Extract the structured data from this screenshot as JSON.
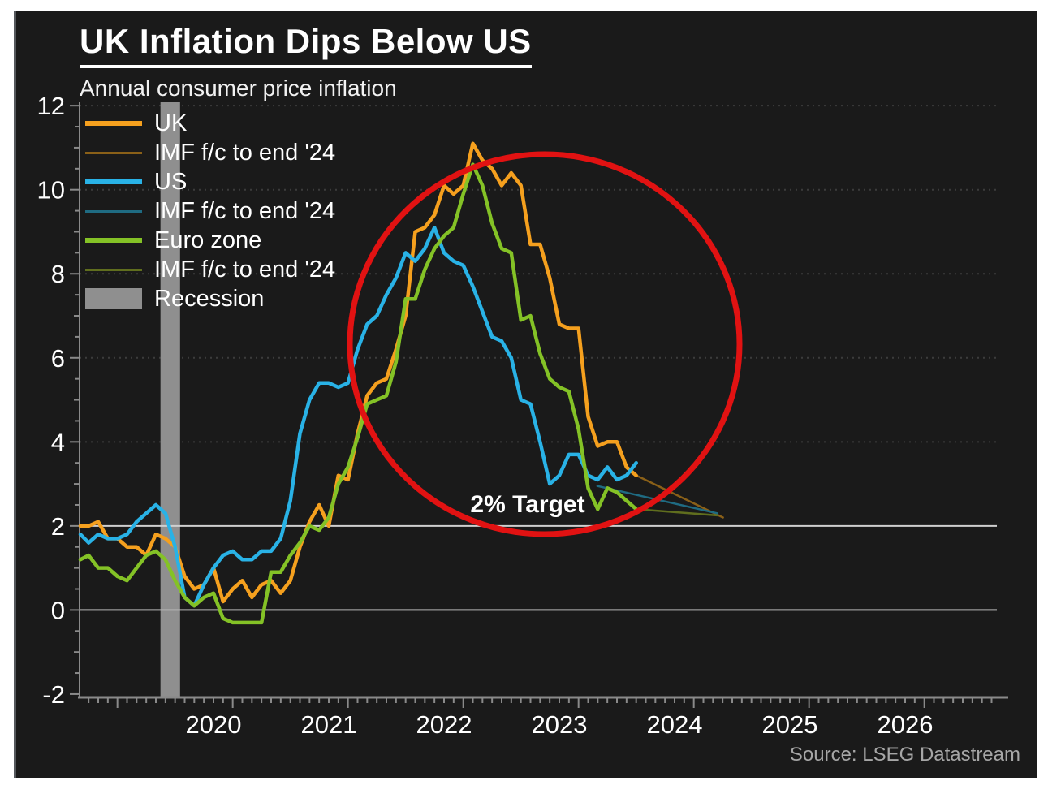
{
  "header": {
    "title": "UK Inflation Dips Below US",
    "subtitle": "Annual consumer price inflation"
  },
  "legend": {
    "items": [
      {
        "label": "UK",
        "color": "#f5a01e",
        "style": "line"
      },
      {
        "label": "IMF f/c to end '24",
        "color": "#8a6018",
        "style": "thinline"
      },
      {
        "label": "US",
        "color": "#29b2e6",
        "style": "line"
      },
      {
        "label": "IMF f/c to end '24",
        "color": "#1f6b82",
        "style": "thinline"
      },
      {
        "label": "Euro zone",
        "color": "#84c226",
        "style": "line"
      },
      {
        "label": "IMF f/c to end '24",
        "color": "#606e1e",
        "style": "thinline"
      },
      {
        "label": "Recession",
        "color": "#8f8f8f",
        "style": "box"
      }
    ]
  },
  "annotations": {
    "target_label": "2% Target"
  },
  "footer": {
    "source": "Source: LSEG Datastream"
  },
  "chart_data": {
    "type": "line",
    "title": "UK Inflation Dips Below US",
    "subtitle": "Annual consumer price inflation",
    "xlabel": "",
    "ylabel": "",
    "ylim": [
      -2,
      12
    ],
    "yticks": [
      -2,
      0,
      2,
      4,
      6,
      8,
      10,
      12
    ],
    "xticks": [
      2020,
      2021,
      2022,
      2023,
      2024,
      2025,
      2026
    ],
    "grid_dotted_at": [
      4,
      6,
      8,
      10,
      12
    ],
    "target_value": 2,
    "zero_value": 0,
    "frequency": "monthly",
    "start": {
      "year": 2019,
      "month": 5
    },
    "series": [
      {
        "name": "UK",
        "color": "#f5a01e",
        "values": [
          2.0,
          2.0,
          2.1,
          1.7,
          1.7,
          1.5,
          1.5,
          1.3,
          1.8,
          1.7,
          1.5,
          0.8,
          0.5,
          0.6,
          1.0,
          0.2,
          0.5,
          0.7,
          0.3,
          0.6,
          0.7,
          0.4,
          0.7,
          1.5,
          2.1,
          2.5,
          2.0,
          3.2,
          3.1,
          4.2,
          5.1,
          5.4,
          5.5,
          6.2,
          7.0,
          9.0,
          9.1,
          9.4,
          10.1,
          9.9,
          10.1,
          11.1,
          10.7,
          10.5,
          10.1,
          10.4,
          10.1,
          8.7,
          8.7,
          7.9,
          6.8,
          6.7,
          6.7,
          4.6,
          3.9,
          4.0,
          4.0,
          3.4,
          3.2
        ]
      },
      {
        "name": "US",
        "color": "#29b2e6",
        "values": [
          1.8,
          1.6,
          1.8,
          1.7,
          1.7,
          1.8,
          2.1,
          2.3,
          2.5,
          2.3,
          1.5,
          0.3,
          0.1,
          0.6,
          1.0,
          1.3,
          1.4,
          1.2,
          1.2,
          1.4,
          1.4,
          1.7,
          2.6,
          4.2,
          5.0,
          5.4,
          5.4,
          5.3,
          5.4,
          6.2,
          6.8,
          7.0,
          7.5,
          7.9,
          8.5,
          8.3,
          8.6,
          9.1,
          8.5,
          8.3,
          8.2,
          7.7,
          7.1,
          6.5,
          6.4,
          6.0,
          5.0,
          4.9,
          4.0,
          3.0,
          3.2,
          3.7,
          3.7,
          3.2,
          3.1,
          3.4,
          3.1,
          3.2,
          3.5
        ]
      },
      {
        "name": "Euro zone",
        "color": "#84c226",
        "values": [
          1.2,
          1.3,
          1.0,
          1.0,
          0.8,
          0.7,
          1.0,
          1.3,
          1.4,
          1.2,
          0.7,
          0.3,
          0.1,
          0.3,
          0.4,
          -0.2,
          -0.3,
          -0.3,
          -0.3,
          -0.3,
          0.9,
          0.9,
          1.3,
          1.6,
          2.0,
          1.9,
          2.2,
          3.0,
          3.4,
          4.1,
          4.9,
          5.0,
          5.1,
          5.9,
          7.4,
          7.4,
          8.1,
          8.6,
          8.9,
          9.1,
          9.9,
          10.6,
          10.1,
          9.2,
          8.6,
          8.5,
          6.9,
          7.0,
          6.1,
          5.5,
          5.3,
          5.2,
          4.3,
          2.9,
          2.4,
          2.9,
          2.8,
          2.6,
          2.4
        ]
      }
    ],
    "forecasts": [
      {
        "name": "UK IMF f/c to end '24",
        "color": "#8a6018",
        "points": [
          [
            2024.17,
            3.2
          ],
          [
            2024.92,
            2.2
          ]
        ]
      },
      {
        "name": "US IMF f/c to end '24",
        "color": "#1f6b82",
        "points": [
          [
            2023.83,
            2.95
          ],
          [
            2024.87,
            2.3
          ]
        ]
      },
      {
        "name": "Euro zone IMF f/c to end '24",
        "color": "#606e1e",
        "points": [
          [
            2024.17,
            2.4
          ],
          [
            2024.87,
            2.25
          ]
        ]
      }
    ],
    "recession_band": {
      "from": 2020.04,
      "to": 2020.21,
      "label": "Recession"
    },
    "annotation_circle": {
      "note": "red ellipse highlighting the 2022-2024 inflation surge and decline"
    },
    "annotation_text": "2% Target",
    "legend_position": "top-left",
    "colors": {
      "background": "#1a1a1a",
      "axis": "#8a8a8a",
      "grid_dotted": "#3c3c3c",
      "target_line": "#cfcfcf",
      "zero_line": "#b5b5b5",
      "recession": "#8f8f8f",
      "circle": "#e11212",
      "text": "#ffffff",
      "source_text": "#a6a6a6"
    }
  }
}
